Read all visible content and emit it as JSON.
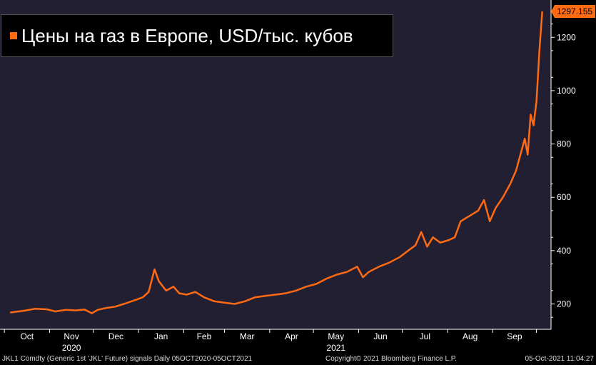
{
  "chart_data": {
    "type": "line",
    "title": "",
    "series": [
      {
        "name": "Цены на газ в Европе, USD/тыс. кубов",
        "color": "#ff6a13",
        "points": [
          [
            "2020-10-05",
            168
          ],
          [
            "2020-10-15",
            175
          ],
          [
            "2020-10-22",
            182
          ],
          [
            "2020-10-30",
            180
          ],
          [
            "2020-11-05",
            172
          ],
          [
            "2020-11-12",
            178
          ],
          [
            "2020-11-19",
            176
          ],
          [
            "2020-11-25",
            179
          ],
          [
            "2020-11-30",
            165
          ],
          [
            "2020-12-04",
            178
          ],
          [
            "2020-12-10",
            185
          ],
          [
            "2020-12-16",
            190
          ],
          [
            "2020-12-22",
            200
          ],
          [
            "2020-12-30",
            215
          ],
          [
            "2021-01-04",
            225
          ],
          [
            "2021-01-08",
            245
          ],
          [
            "2021-01-12",
            330
          ],
          [
            "2021-01-15",
            285
          ],
          [
            "2021-01-20",
            250
          ],
          [
            "2021-01-25",
            265
          ],
          [
            "2021-01-29",
            240
          ],
          [
            "2021-02-03",
            235
          ],
          [
            "2021-02-09",
            245
          ],
          [
            "2021-02-15",
            225
          ],
          [
            "2021-02-22",
            210
          ],
          [
            "2021-03-01",
            205
          ],
          [
            "2021-03-08",
            200
          ],
          [
            "2021-03-15",
            210
          ],
          [
            "2021-03-22",
            225
          ],
          [
            "2021-03-29",
            230
          ],
          [
            "2021-04-05",
            235
          ],
          [
            "2021-04-12",
            240
          ],
          [
            "2021-04-19",
            250
          ],
          [
            "2021-04-26",
            265
          ],
          [
            "2021-05-03",
            275
          ],
          [
            "2021-05-10",
            295
          ],
          [
            "2021-05-17",
            310
          ],
          [
            "2021-05-24",
            320
          ],
          [
            "2021-05-31",
            340
          ],
          [
            "2021-06-04",
            300
          ],
          [
            "2021-06-08",
            320
          ],
          [
            "2021-06-15",
            340
          ],
          [
            "2021-06-22",
            355
          ],
          [
            "2021-06-29",
            375
          ],
          [
            "2021-07-05",
            400
          ],
          [
            "2021-07-10",
            420
          ],
          [
            "2021-07-14",
            470
          ],
          [
            "2021-07-18",
            415
          ],
          [
            "2021-07-22",
            450
          ],
          [
            "2021-07-27",
            430
          ],
          [
            "2021-08-02",
            440
          ],
          [
            "2021-08-06",
            450
          ],
          [
            "2021-08-10",
            510
          ],
          [
            "2021-08-16",
            530
          ],
          [
            "2021-08-22",
            550
          ],
          [
            "2021-08-26",
            590
          ],
          [
            "2021-08-30",
            510
          ],
          [
            "2021-09-03",
            560
          ],
          [
            "2021-09-08",
            600
          ],
          [
            "2021-09-13",
            650
          ],
          [
            "2021-09-17",
            700
          ],
          [
            "2021-09-21",
            780
          ],
          [
            "2021-09-23",
            820
          ],
          [
            "2021-09-25",
            760
          ],
          [
            "2021-09-27",
            910
          ],
          [
            "2021-09-29",
            870
          ],
          [
            "2021-10-01",
            960
          ],
          [
            "2021-10-02",
            1050
          ],
          [
            "2021-10-03",
            1150
          ],
          [
            "2021-10-05",
            1297.155
          ]
        ]
      }
    ],
    "x_range": [
      "2020-09-28",
      "2021-10-11"
    ],
    "ylim": [
      105,
      1340
    ],
    "y_ticks": [
      200,
      400,
      600,
      800,
      1000,
      1200
    ],
    "x_ticks": [
      {
        "date": "2020-10-01",
        "label": "Oct"
      },
      {
        "date": "2020-11-01",
        "label": "Nov"
      },
      {
        "date": "2020-12-01",
        "label": "Dec"
      },
      {
        "date": "2021-01-01",
        "label": "Jan"
      },
      {
        "date": "2021-02-01",
        "label": "Feb"
      },
      {
        "date": "2021-03-01",
        "label": "Mar"
      },
      {
        "date": "2021-04-01",
        "label": "Apr"
      },
      {
        "date": "2021-05-01",
        "label": "May"
      },
      {
        "date": "2021-06-01",
        "label": "Jun"
      },
      {
        "date": "2021-07-01",
        "label": "Jul"
      },
      {
        "date": "2021-08-01",
        "label": "Aug"
      },
      {
        "date": "2021-09-01",
        "label": "Sep"
      }
    ],
    "year_labels": [
      {
        "date": "2020-11-01",
        "label": "2020"
      },
      {
        "date": "2021-05-01",
        "label": "2021"
      }
    ],
    "last_value_label": "1297.155",
    "grid": false,
    "legend_position": "top-left",
    "colors": {
      "plot_background": "#221f33",
      "line": "#ff6a13",
      "axis": "#ffffff"
    }
  },
  "legend": {
    "label": "Цены на газ в Европе, USD/тыс. кубов"
  },
  "footer": {
    "left": "JKL1 Comdty (Generic 1st 'JKL' Future) signals  Daily 05OCT2020-05OCT2021",
    "mid": "Copyright© 2021 Bloomberg Finance L.P.",
    "right": "05-Oct-2021 11:04:27"
  }
}
